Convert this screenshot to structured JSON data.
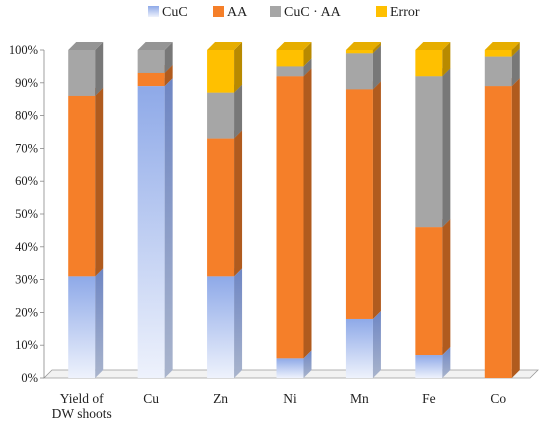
{
  "chart_data": {
    "type": "bar",
    "stacked": true,
    "percent": true,
    "three_d": true,
    "categories": [
      [
        "Yield of",
        "DW shoots"
      ],
      [
        "Cu"
      ],
      [
        "Zn"
      ],
      [
        "Ni"
      ],
      [
        "Mn"
      ],
      [
        "Fe"
      ],
      [
        "Co"
      ]
    ],
    "series": [
      {
        "name": "CuC",
        "color": "#8EA9E8",
        "values": [
          31,
          89,
          31,
          6,
          18,
          7,
          0
        ]
      },
      {
        "name": "AA",
        "color": "#F57F29",
        "values": [
          55,
          4,
          42,
          86,
          70,
          39,
          89
        ]
      },
      {
        "name": "CuC · AA",
        "color": "#A6A6A6",
        "values": [
          14,
          7,
          14,
          3,
          11,
          46,
          9
        ]
      },
      {
        "name": "Error",
        "color": "#FFC000",
        "values": [
          0,
          0,
          13,
          5,
          1,
          8,
          2
        ]
      }
    ],
    "yticks": [
      "0%",
      "10%",
      "20%",
      "30%",
      "40%",
      "50%",
      "60%",
      "70%",
      "80%",
      "90%",
      "100%"
    ],
    "ylim": [
      0,
      100
    ],
    "legend_position": "top",
    "grid": false
  }
}
